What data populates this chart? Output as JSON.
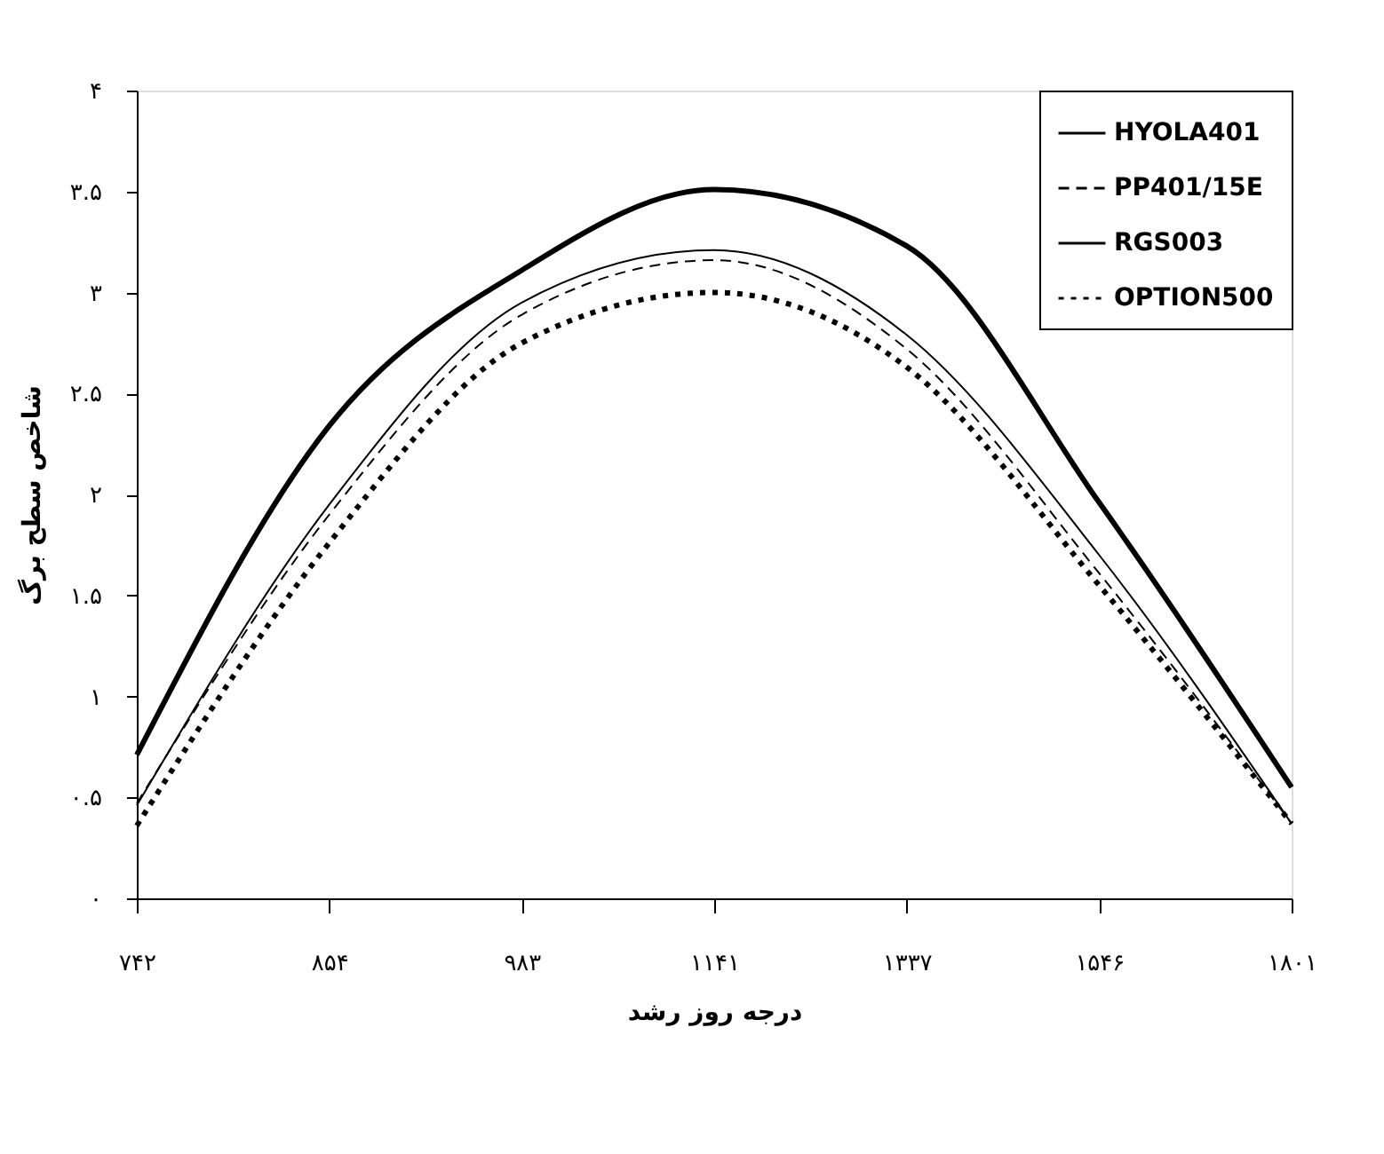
{
  "chart_data": {
    "type": "line",
    "xlabel": "درجه روز رشد",
    "ylabel": "شاخص سطح برگ",
    "categories": [
      "۷۴۲",
      "۸۵۴",
      "۹۸۳",
      "۱۱۴۱",
      "۱۳۳۷",
      "۱۵۴۶",
      "۱۸۰۱"
    ],
    "ylim": [
      0,
      4
    ],
    "yticks": [
      {
        "value": 0,
        "label": "۰"
      },
      {
        "value": 0.5,
        "label": "۰.۵"
      },
      {
        "value": 1,
        "label": "۱"
      },
      {
        "value": 1.5,
        "label": "۱.۵"
      },
      {
        "value": 2,
        "label": "۲"
      },
      {
        "value": 2.5,
        "label": "۲.۵"
      },
      {
        "value": 3,
        "label": "۳"
      },
      {
        "value": 3.5,
        "label": "۳.۵"
      },
      {
        "value": 4,
        "label": "۴"
      }
    ],
    "grid": false,
    "legend": "top right",
    "series": [
      {
        "name": "HYOLA401",
        "color": "#000000",
        "line_style": "solid",
        "values": [
          0.71,
          2.34,
          3.11,
          3.51,
          3.23,
          1.96,
          0.55
        ]
      },
      {
        "name": "PP401/15E",
        "color": "#000000",
        "line_style": "dashed",
        "values": [
          0.47,
          1.9,
          2.89,
          3.16,
          2.72,
          1.61,
          0.37
        ]
      },
      {
        "name": "RGS003",
        "color": "#000000",
        "line_style": "solid",
        "values": [
          0.46,
          1.95,
          2.95,
          3.21,
          2.79,
          1.7,
          0.37
        ]
      },
      {
        "name": "OPTION500",
        "color": "#000000",
        "line_style": "dotted",
        "values": [
          0.36,
          1.76,
          2.75,
          3.0,
          2.63,
          1.55,
          0.37
        ]
      }
    ]
  }
}
